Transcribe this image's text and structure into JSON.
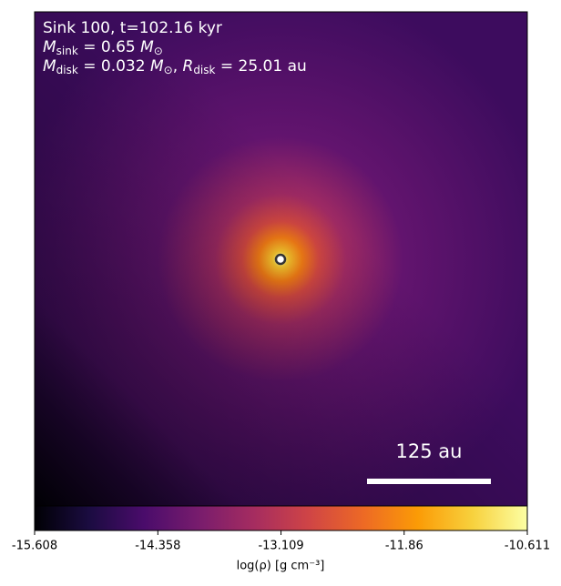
{
  "chart_data": {
    "type": "density-map",
    "info": [
      [
        {
          "t": "Sink 100, t=102.16 kyr"
        }
      ],
      [
        {
          "t": "M",
          "italic": true
        },
        {
          "t": "sink",
          "sub": true
        },
        {
          "t": " = 0.65 "
        },
        {
          "t": "M",
          "italic": true
        },
        {
          "t": "⊙",
          "sub": true
        }
      ],
      [
        {
          "t": "M",
          "italic": true
        },
        {
          "t": "disk",
          "sub": true
        },
        {
          "t": " = 0.032 "
        },
        {
          "t": "M",
          "italic": true
        },
        {
          "t": "⊙",
          "sub": true
        },
        {
          "t": ", "
        },
        {
          "t": "R",
          "italic": true
        },
        {
          "t": "disk",
          "sub": true
        },
        {
          "t": " = 25.01 au"
        }
      ]
    ],
    "scale_bar_label": "125 au",
    "colormap": "inferno",
    "colorbar": {
      "lim": [
        -15.608,
        -10.611
      ],
      "ticks": [
        -15.608,
        -14.358,
        -13.109,
        -11.86,
        -10.611
      ],
      "tick_labels_override": null,
      "label": "log(ρ) [g cm⁻³]"
    }
  }
}
